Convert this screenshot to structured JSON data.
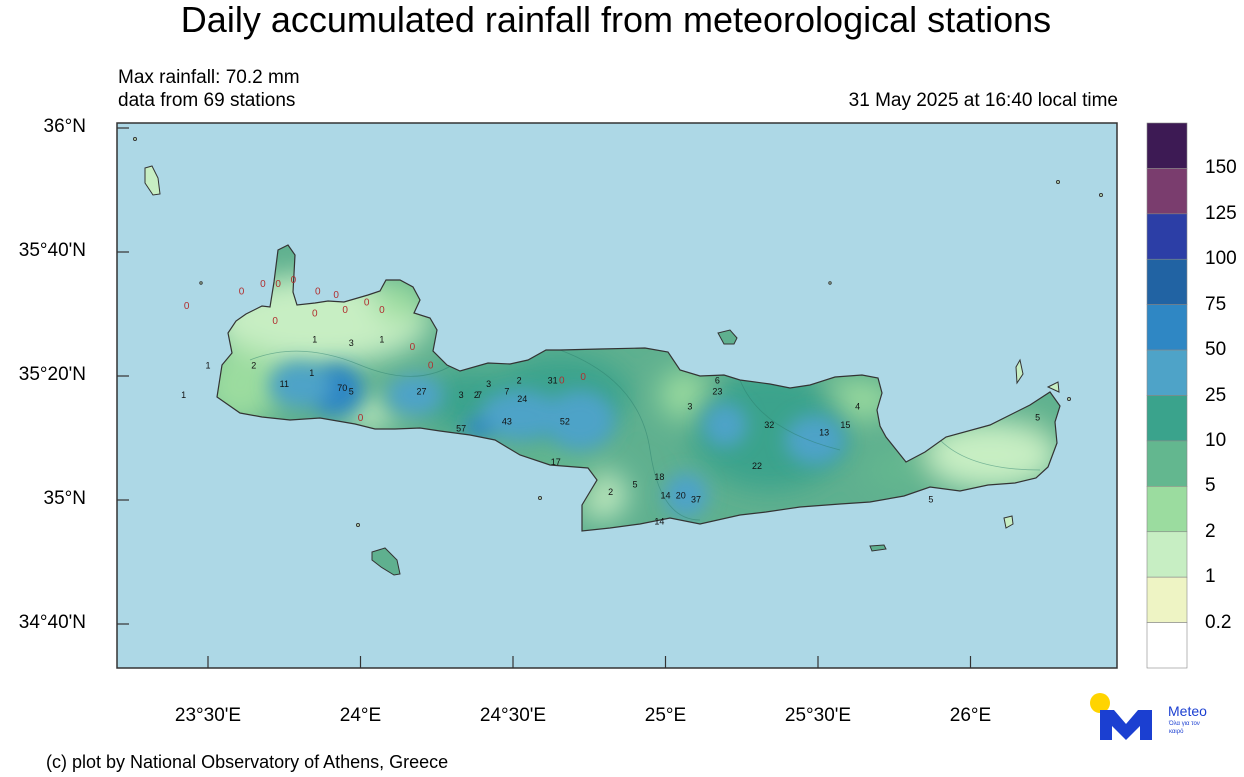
{
  "title": "Daily accumulated rainfall from meteorological stations",
  "max_rainfall": "Max rainfall: 70.2 mm",
  "station_count": "data from 69 stations",
  "timestamp": "31 May 2025 at 16:40 local time",
  "credit": "(c) plot by National Observatory of Athens, Greece",
  "logo": {
    "name": "Meteo",
    "tagline": "Όλα για τον καιρό"
  },
  "lat_labels": [
    "36°N",
    "35°40'N",
    "35°20'N",
    "35°N",
    "34°40'N"
  ],
  "lon_labels": [
    "23°30'E",
    "24°E",
    "24°30'E",
    "25°E",
    "25°30'E",
    "26°E"
  ],
  "legend": {
    "labels": [
      "150",
      "125",
      "100",
      "75",
      "50",
      "25",
      "10",
      "5",
      "2",
      "1",
      "0.2"
    ],
    "colors": [
      "#3d1a54",
      "#7a3d6e",
      "#2c3ea6",
      "#2163a3",
      "#2f87c4",
      "#4ea3c8",
      "#3aa38c",
      "#63b78f",
      "#9bdc9f",
      "#c7eec3",
      "#eef4c4",
      "#ffffff"
    ]
  },
  "colors": {
    "sea": "#add8e6",
    "land_base": "#5fb08f"
  },
  "stations": [
    {
      "value": "0",
      "lon": 23.61,
      "lat": 35.56
    },
    {
      "value": "0",
      "lon": 23.68,
      "lat": 35.58
    },
    {
      "value": "0",
      "lon": 23.73,
      "lat": 35.58
    },
    {
      "value": "0",
      "lon": 23.78,
      "lat": 35.59
    },
    {
      "value": "0",
      "lon": 23.86,
      "lat": 35.56
    },
    {
      "value": "0",
      "lon": 23.92,
      "lat": 35.55
    },
    {
      "value": "0",
      "lon": 23.95,
      "lat": 35.51
    },
    {
      "value": "0",
      "lon": 24.02,
      "lat": 35.53
    },
    {
      "value": "0",
      "lon": 24.07,
      "lat": 35.51
    },
    {
      "value": "0",
      "lon": 23.43,
      "lat": 35.52
    },
    {
      "value": "0",
      "lon": 23.85,
      "lat": 35.5
    },
    {
      "value": "0",
      "lon": 23.72,
      "lat": 35.48
    },
    {
      "value": "0",
      "lon": 24.17,
      "lat": 35.41
    },
    {
      "value": "0",
      "lon": 24.23,
      "lat": 35.36
    },
    {
      "value": "0",
      "lon": 24.0,
      "lat": 35.22
    },
    {
      "value": "0",
      "lon": 24.66,
      "lat": 35.32
    },
    {
      "value": "0",
      "lon": 24.73,
      "lat": 35.33
    },
    {
      "value": "1",
      "lon": 23.42,
      "lat": 35.28
    },
    {
      "value": "1",
      "lon": 23.85,
      "lat": 35.43
    },
    {
      "value": "1",
      "lon": 24.07,
      "lat": 35.43
    },
    {
      "value": "1",
      "lon": 23.5,
      "lat": 35.36
    },
    {
      "value": "1",
      "lon": 23.84,
      "lat": 35.34
    },
    {
      "value": "2",
      "lon": 23.65,
      "lat": 35.36
    },
    {
      "value": "2",
      "lon": 24.52,
      "lat": 35.32
    },
    {
      "value": "2",
      "lon": 24.38,
      "lat": 35.28
    },
    {
      "value": "2",
      "lon": 24.82,
      "lat": 35.02
    },
    {
      "value": "3",
      "lon": 23.97,
      "lat": 35.42
    },
    {
      "value": "3",
      "lon": 24.33,
      "lat": 35.28
    },
    {
      "value": "3",
      "lon": 24.42,
      "lat": 35.31
    },
    {
      "value": "3",
      "lon": 25.08,
      "lat": 35.25
    },
    {
      "value": "4",
      "lon": 25.63,
      "lat": 35.25
    },
    {
      "value": "5",
      "lon": 23.97,
      "lat": 35.29
    },
    {
      "value": "5",
      "lon": 26.22,
      "lat": 35.22
    },
    {
      "value": "5",
      "lon": 24.9,
      "lat": 35.04
    },
    {
      "value": "5",
      "lon": 25.87,
      "lat": 35.0
    },
    {
      "value": "6",
      "lon": 25.17,
      "lat": 35.32
    },
    {
      "value": "7",
      "lon": 24.39,
      "lat": 35.28
    },
    {
      "value": "7",
      "lon": 24.48,
      "lat": 35.29
    },
    {
      "value": "11",
      "lon": 23.75,
      "lat": 35.31
    },
    {
      "value": "13",
      "lon": 25.52,
      "lat": 35.18
    },
    {
      "value": "14",
      "lon": 25.0,
      "lat": 35.01
    },
    {
      "value": "14",
      "lon": 24.98,
      "lat": 34.94
    },
    {
      "value": "15",
      "lon": 25.59,
      "lat": 35.2
    },
    {
      "value": "17",
      "lon": 24.64,
      "lat": 35.1
    },
    {
      "value": "18",
      "lon": 24.98,
      "lat": 35.06
    },
    {
      "value": "20",
      "lon": 25.05,
      "lat": 35.01
    },
    {
      "value": "22",
      "lon": 25.3,
      "lat": 35.09
    },
    {
      "value": "23",
      "lon": 25.17,
      "lat": 35.29
    },
    {
      "value": "24",
      "lon": 24.53,
      "lat": 35.27
    },
    {
      "value": "27",
      "lon": 24.2,
      "lat": 35.29
    },
    {
      "value": "31",
      "lon": 24.63,
      "lat": 35.32
    },
    {
      "value": "32",
      "lon": 25.34,
      "lat": 35.2
    },
    {
      "value": "37",
      "lon": 25.1,
      "lat": 35.0
    },
    {
      "value": "43",
      "lon": 24.48,
      "lat": 35.21
    },
    {
      "value": "52",
      "lon": 24.67,
      "lat": 35.21
    },
    {
      "value": "57",
      "lon": 24.33,
      "lat": 35.19
    },
    {
      "value": "70",
      "lon": 23.94,
      "lat": 35.3
    }
  ]
}
